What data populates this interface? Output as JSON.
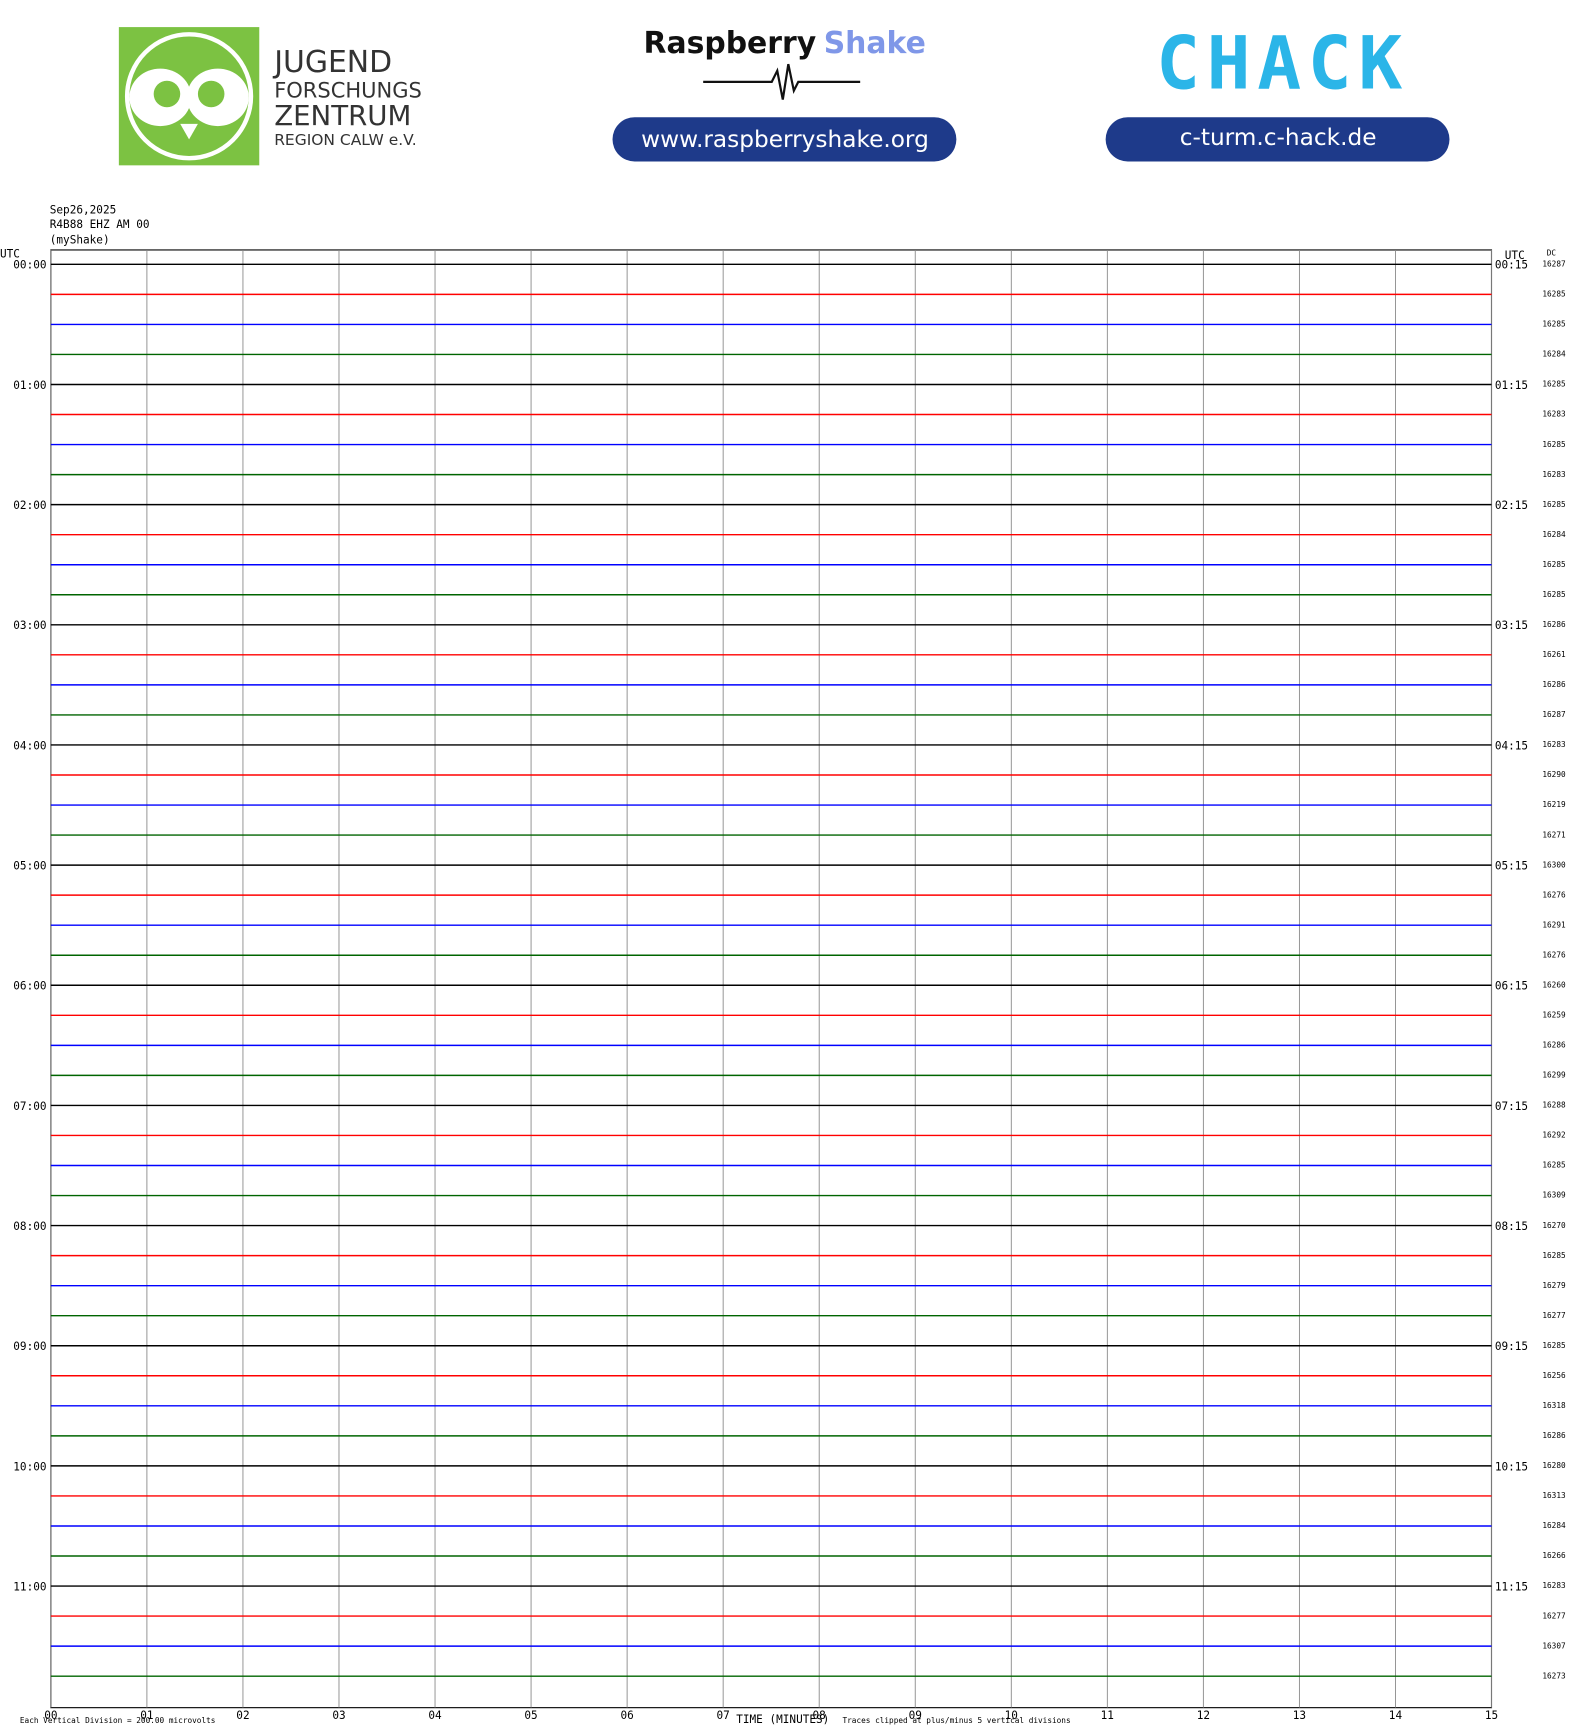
{
  "header": {
    "org": {
      "lines": [
        "JUGEND",
        "FORSCHUNGS",
        "ZENTRUM",
        "REGION CALW e.V."
      ]
    },
    "rs": {
      "word1": "Raspberry",
      "word2": "Shake",
      "url": "www.raspberryshake.org"
    },
    "chack": {
      "name": "CHACK",
      "url": "c-turm.c-hack.de"
    }
  },
  "plot": {
    "date": "Sep26,2025",
    "station": "R4B88 EHZ AM 00",
    "source": "(myShake)",
    "utc_left": "UTC",
    "utc_right": "UTC",
    "dc_label": "DC",
    "hours_left": [
      "00:00",
      "01:00",
      "02:00",
      "03:00",
      "04:00",
      "05:00",
      "06:00",
      "07:00",
      "08:00",
      "09:00",
      "10:00",
      "11:00"
    ],
    "hours_right": [
      "00:15",
      "01:15",
      "02:15",
      "03:15",
      "04:15",
      "05:15",
      "06:15",
      "07:15",
      "08:15",
      "09:15",
      "10:15",
      "11:15"
    ],
    "dc": [
      16287,
      16285,
      16285,
      16284,
      16285,
      16283,
      16285,
      16283,
      16285,
      16284,
      16285,
      16285,
      16286,
      16261,
      16286,
      16287,
      16283,
      16290,
      16219,
      16271,
      16300,
      16276,
      16291,
      16276,
      16260,
      16259,
      16286,
      16299,
      16288,
      16292,
      16285,
      16309,
      16270,
      16285,
      16279,
      16277,
      16285,
      16256,
      16318,
      16286,
      16280,
      16313,
      16284,
      16266,
      16283,
      16277,
      16307,
      16273
    ],
    "colors": [
      "#000000",
      "#ff0000",
      "#0000ff",
      "#006400"
    ],
    "minutes": [
      "00",
      "01",
      "02",
      "03",
      "04",
      "05",
      "06",
      "07",
      "08",
      "09",
      "10",
      "11",
      "12",
      "13",
      "14",
      "15"
    ],
    "xlabel": "TIME (MINUTES)",
    "footer_left": "Each Vertical Division =  200.00 microvolts",
    "footer_right": "Traces clipped at plus/minus 5 vertical divisions"
  }
}
